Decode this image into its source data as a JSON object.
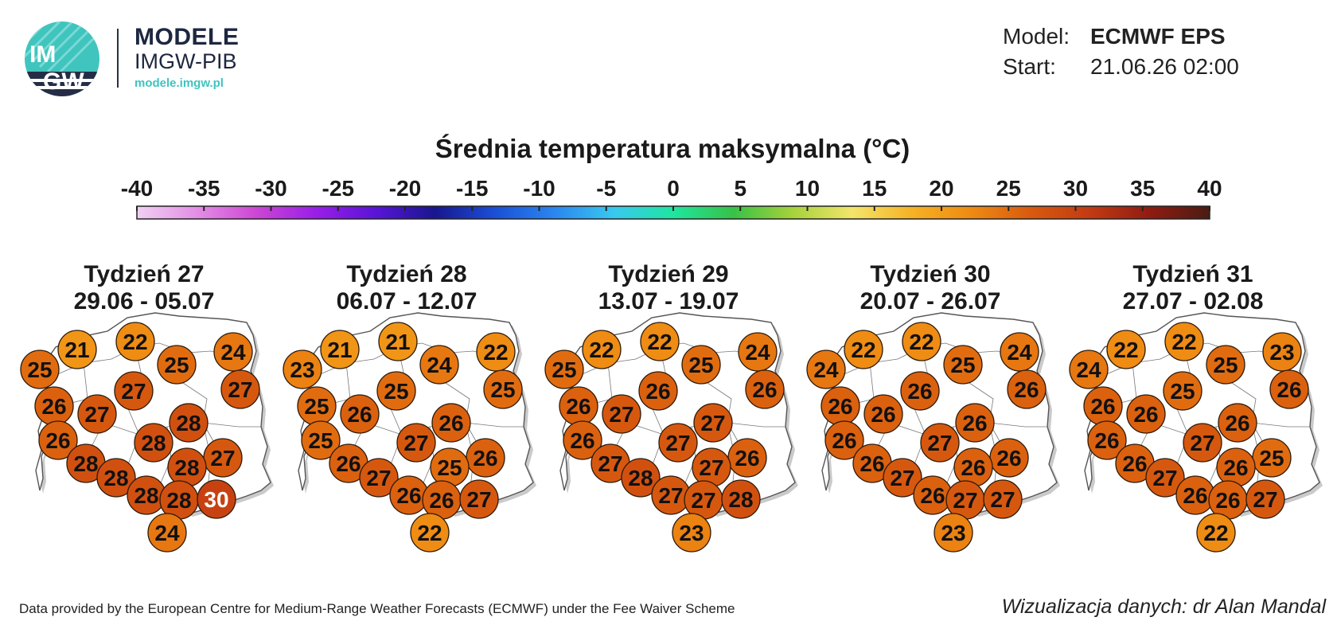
{
  "header": {
    "logo_emblem_text_1": "IM",
    "logo_emblem_text_2": "GW",
    "logo_title": "MODELE",
    "logo_subtitle": "IMGW-PIB",
    "logo_url": "modele.imgw.pl",
    "model_label": "Model:",
    "model_value": "ECMWF EPS",
    "start_label": "Start:",
    "start_value": "21.06.26 02:00"
  },
  "footer": {
    "source": "Data provided by the European Centre for Medium-Range Weather Forecasts (ECMWF) under the Fee Waiver Scheme",
    "credit": "Wizualizacja danych: dr Alan Mandal"
  },
  "colors": {
    "scale": [
      "#f0d0f2",
      "#e38fe6",
      "#cd46d4",
      "#9a1ee8",
      "#5a14d8",
      "#18168f",
      "#1a4fd6",
      "#2a86f0",
      "#38c8f0",
      "#1ee6a0",
      "#37c247",
      "#a6d23a",
      "#f3e56b",
      "#f6b224",
      "#ef8a12",
      "#d85a0f",
      "#c23a12",
      "#8f1b12",
      "#4a1c12"
    ],
    "circle_outline": "#2b1a0a"
  },
  "chart_data": {
    "type": "table",
    "title": "Średnia temperatura maksymalna (°C)",
    "colorbar": {
      "ticks": [
        -40,
        -35,
        -30,
        -25,
        -20,
        -15,
        -10,
        -5,
        0,
        5,
        10,
        15,
        20,
        25,
        30,
        35,
        40
      ],
      "range": [
        -40,
        40
      ],
      "unit": "°C"
    },
    "weeks": [
      {
        "label": "Tydzień 27",
        "dates": "29.06 - 05.07",
        "values": [
          21,
          22,
          25,
          24,
          25,
          27,
          27,
          26,
          27,
          28,
          26,
          28,
          28,
          27,
          28,
          28,
          28,
          28,
          30,
          24
        ]
      },
      {
        "label": "Tydzień 28",
        "dates": "06.07 - 12.07",
        "values": [
          21,
          21,
          23,
          22,
          24,
          25,
          25,
          25,
          26,
          26,
          25,
          26,
          27,
          26,
          25,
          27,
          26,
          26,
          27,
          22
        ]
      },
      {
        "label": "Tydzień 29",
        "dates": "13.07 - 19.07",
        "values": [
          22,
          22,
          25,
          24,
          25,
          26,
          26,
          26,
          27,
          27,
          26,
          27,
          27,
          26,
          27,
          28,
          27,
          27,
          28,
          23
        ]
      },
      {
        "label": "Tydzień 30",
        "dates": "20.07 - 26.07",
        "values": [
          22,
          22,
          24,
          24,
          25,
          26,
          26,
          26,
          26,
          26,
          26,
          26,
          27,
          26,
          26,
          27,
          26,
          27,
          27,
          23
        ]
      },
      {
        "label": "Tydzień 31",
        "dates": "27.07 - 02.08",
        "values": [
          22,
          22,
          24,
          23,
          25,
          26,
          25,
          26,
          26,
          26,
          26,
          26,
          27,
          25,
          26,
          27,
          26,
          26,
          27,
          22
        ]
      }
    ]
  }
}
